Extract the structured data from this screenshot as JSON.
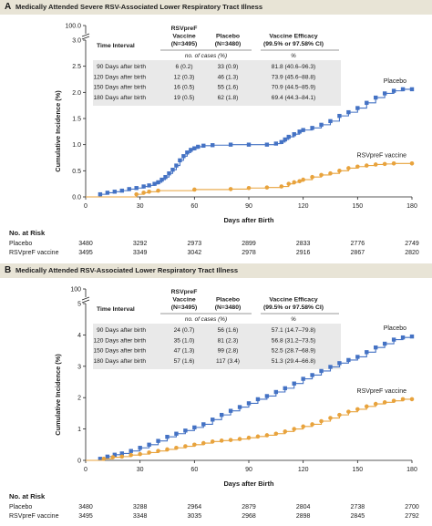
{
  "colors": {
    "placebo": "#4472c4",
    "vaccine": "#e8a33d",
    "header_bg": "#e8e4d6",
    "table_bg": "#e9e9e9"
  },
  "chart_data": [
    {
      "type": "line",
      "panel_letter": "A",
      "title": "Medically Attended Severe RSV-Associated Lower Respiratory Tract Illness",
      "xlabel": "Days after Birth",
      "ylabel": "Cumulative Incidence (%)",
      "xlim": [
        0,
        180
      ],
      "ylim": [
        0,
        3.0
      ],
      "axis_break": true,
      "top_tick_label": "100.0",
      "x_ticks": [
        "0",
        "30",
        "60",
        "90",
        "120",
        "150",
        "180"
      ],
      "y_ticks": [
        "0.0",
        "0.5",
        "1.0",
        "1.5",
        "2.0",
        "2.5",
        "3.0"
      ],
      "series": [
        {
          "name": "Placebo",
          "label": "Placebo",
          "color": "#4472c4",
          "points": [
            [
              0,
              0
            ],
            [
              8,
              0.05
            ],
            [
              12,
              0.08
            ],
            [
              16,
              0.1
            ],
            [
              20,
              0.12
            ],
            [
              24,
              0.15
            ],
            [
              28,
              0.17
            ],
            [
              32,
              0.2
            ],
            [
              35,
              0.22
            ],
            [
              38,
              0.25
            ],
            [
              40,
              0.28
            ],
            [
              42,
              0.33
            ],
            [
              44,
              0.38
            ],
            [
              46,
              0.45
            ],
            [
              48,
              0.52
            ],
            [
              50,
              0.6
            ],
            [
              52,
              0.7
            ],
            [
              54,
              0.78
            ],
            [
              56,
              0.85
            ],
            [
              58,
              0.9
            ],
            [
              60,
              0.93
            ],
            [
              62,
              0.96
            ],
            [
              65,
              0.98
            ],
            [
              70,
              0.99
            ],
            [
              80,
              1.0
            ],
            [
              90,
              1.0
            ],
            [
              100,
              1.0
            ],
            [
              105,
              1.02
            ],
            [
              108,
              1.05
            ],
            [
              110,
              1.1
            ],
            [
              112,
              1.15
            ],
            [
              115,
              1.2
            ],
            [
              118,
              1.25
            ],
            [
              120,
              1.28
            ],
            [
              125,
              1.32
            ],
            [
              130,
              1.38
            ],
            [
              135,
              1.45
            ],
            [
              140,
              1.55
            ],
            [
              145,
              1.62
            ],
            [
              150,
              1.7
            ],
            [
              155,
              1.8
            ],
            [
              160,
              1.9
            ],
            [
              165,
              1.98
            ],
            [
              170,
              2.03
            ],
            [
              175,
              2.06
            ],
            [
              180,
              2.06
            ]
          ]
        },
        {
          "name": "RSVpreF vaccine",
          "label": "RSVpreF vaccine",
          "color": "#e8a33d",
          "points": [
            [
              0,
              0
            ],
            [
              28,
              0.05
            ],
            [
              32,
              0.08
            ],
            [
              35,
              0.1
            ],
            [
              40,
              0.12
            ],
            [
              60,
              0.14
            ],
            [
              80,
              0.15
            ],
            [
              90,
              0.17
            ],
            [
              100,
              0.18
            ],
            [
              108,
              0.2
            ],
            [
              112,
              0.25
            ],
            [
              115,
              0.28
            ],
            [
              118,
              0.3
            ],
            [
              120,
              0.33
            ],
            [
              125,
              0.38
            ],
            [
              130,
              0.42
            ],
            [
              135,
              0.45
            ],
            [
              140,
              0.5
            ],
            [
              145,
              0.55
            ],
            [
              150,
              0.58
            ],
            [
              155,
              0.6
            ],
            [
              160,
              0.62
            ],
            [
              165,
              0.63
            ],
            [
              170,
              0.64
            ],
            [
              180,
              0.64
            ]
          ]
        }
      ],
      "table": {
        "columns": [
          "Time Interval",
          "RSVpreF Vaccine (N=3495)",
          "Placebo (N=3480)",
          "Vaccine Efficacy (99.5% or 97.58% CI)"
        ],
        "header_lines": {
          "vaccine": [
            "RSVpreF",
            "Vaccine",
            "(N=3495)"
          ],
          "placebo": [
            "Placebo",
            "(N=3480)"
          ],
          "efficacy": [
            "Vaccine Efficacy",
            "(99.5% or 97.58% CI)"
          ]
        },
        "subheader": "no. of cases (%)",
        "subheader_pct": "%",
        "rows": [
          [
            "90 Days after birth",
            "6 (0.2)",
            "33 (0.9)",
            "81.8 (40.6–96.3)"
          ],
          [
            "120 Days after birth",
            "12 (0.3)",
            "46 (1.3)",
            "73.9 (45.6–88.8)"
          ],
          [
            "150 Days after birth",
            "16 (0.5)",
            "55 (1.6)",
            "70.9 (44.5–85.9)"
          ],
          [
            "180 Days after birth",
            "19 (0.5)",
            "62 (1.8)",
            "69.4 (44.3–84.1)"
          ]
        ]
      },
      "at_risk": {
        "title": "No. at Risk",
        "rows": [
          {
            "label": "Placebo",
            "values": [
              "3480",
              "3292",
              "2973",
              "2899",
              "2833",
              "2776",
              "2749"
            ]
          },
          {
            "label": "RSVpreF vaccine",
            "values": [
              "3495",
              "3349",
              "3042",
              "2978",
              "2916",
              "2867",
              "2820"
            ]
          }
        ]
      }
    },
    {
      "type": "line",
      "panel_letter": "B",
      "title": "Medically Attended RSV-Associated Lower Respiratory Tract Illness",
      "xlabel": "Days after Birth",
      "ylabel": "Cumulative Incidence (%)",
      "xlim": [
        0,
        180
      ],
      "ylim": [
        0,
        5
      ],
      "axis_break": true,
      "top_tick_label": "100",
      "x_ticks": [
        "0",
        "30",
        "60",
        "90",
        "120",
        "150",
        "180"
      ],
      "y_ticks": [
        "0",
        "1",
        "2",
        "3",
        "4",
        "5"
      ],
      "series": [
        {
          "name": "Placebo",
          "label": "Placebo",
          "color": "#4472c4",
          "points": [
            [
              0,
              0
            ],
            [
              8,
              0.05
            ],
            [
              12,
              0.12
            ],
            [
              16,
              0.18
            ],
            [
              20,
              0.22
            ],
            [
              25,
              0.3
            ],
            [
              30,
              0.4
            ],
            [
              35,
              0.5
            ],
            [
              40,
              0.62
            ],
            [
              45,
              0.75
            ],
            [
              50,
              0.85
            ],
            [
              55,
              0.95
            ],
            [
              60,
              1.05
            ],
            [
              65,
              1.15
            ],
            [
              70,
              1.3
            ],
            [
              75,
              1.45
            ],
            [
              80,
              1.58
            ],
            [
              85,
              1.7
            ],
            [
              90,
              1.82
            ],
            [
              95,
              1.95
            ],
            [
              100,
              2.05
            ],
            [
              105,
              2.18
            ],
            [
              110,
              2.3
            ],
            [
              115,
              2.45
            ],
            [
              120,
              2.6
            ],
            [
              125,
              2.72
            ],
            [
              130,
              2.85
            ],
            [
              135,
              2.98
            ],
            [
              140,
              3.1
            ],
            [
              145,
              3.2
            ],
            [
              150,
              3.3
            ],
            [
              155,
              3.45
            ],
            [
              160,
              3.6
            ],
            [
              165,
              3.72
            ],
            [
              170,
              3.85
            ],
            [
              175,
              3.92
            ],
            [
              180,
              3.95
            ]
          ]
        },
        {
          "name": "RSVpreF vaccine",
          "label": "RSVpreF vaccine",
          "color": "#e8a33d",
          "points": [
            [
              0,
              0
            ],
            [
              10,
              0.05
            ],
            [
              15,
              0.1
            ],
            [
              20,
              0.12
            ],
            [
              25,
              0.17
            ],
            [
              30,
              0.2
            ],
            [
              35,
              0.25
            ],
            [
              40,
              0.3
            ],
            [
              45,
              0.35
            ],
            [
              50,
              0.4
            ],
            [
              55,
              0.45
            ],
            [
              60,
              0.5
            ],
            [
              65,
              0.55
            ],
            [
              70,
              0.6
            ],
            [
              75,
              0.63
            ],
            [
              80,
              0.65
            ],
            [
              85,
              0.68
            ],
            [
              90,
              0.72
            ],
            [
              95,
              0.76
            ],
            [
              100,
              0.8
            ],
            [
              105,
              0.85
            ],
            [
              110,
              0.92
            ],
            [
              115,
              1.0
            ],
            [
              120,
              1.08
            ],
            [
              125,
              1.15
            ],
            [
              130,
              1.25
            ],
            [
              135,
              1.35
            ],
            [
              140,
              1.45
            ],
            [
              145,
              1.55
            ],
            [
              150,
              1.63
            ],
            [
              155,
              1.72
            ],
            [
              160,
              1.8
            ],
            [
              165,
              1.85
            ],
            [
              170,
              1.9
            ],
            [
              175,
              1.95
            ],
            [
              180,
              1.95
            ]
          ]
        }
      ],
      "table": {
        "columns": [
          "Time Interval",
          "RSVpreF Vaccine (N=3495)",
          "Placebo (N=3480)",
          "Vaccine Efficacy (99.5% or 97.58% CI)"
        ],
        "header_lines": {
          "vaccine": [
            "RSVpreF",
            "Vaccine",
            "(N=3495)"
          ],
          "placebo": [
            "Placebo",
            "(N=3480)"
          ],
          "efficacy": [
            "Vaccine Efficacy",
            "(99.5% or 97.58% CI)"
          ]
        },
        "subheader": "no. of cases (%)",
        "subheader_pct": "%",
        "rows": [
          [
            "90 Days after birth",
            "24 (0.7)",
            "56 (1.6)",
            "57.1 (14.7–79.8)"
          ],
          [
            "120 Days after birth",
            "35 (1.0)",
            "81 (2.3)",
            "56.8 (31.2–73.5)"
          ],
          [
            "150 Days after birth",
            "47 (1.3)",
            "99 (2.8)",
            "52.5 (28.7–68.9)"
          ],
          [
            "180 Days after birth",
            "57 (1.6)",
            "117 (3.4)",
            "51.3 (29.4–66.8)"
          ]
        ]
      },
      "at_risk": {
        "title": "No. at Risk",
        "rows": [
          {
            "label": "Placebo",
            "values": [
              "3480",
              "3288",
              "2964",
              "2879",
              "2804",
              "2738",
              "2700"
            ]
          },
          {
            "label": "RSVpreF vaccine",
            "values": [
              "3495",
              "3348",
              "3035",
              "2968",
              "2898",
              "2845",
              "2792"
            ]
          }
        ]
      }
    }
  ]
}
